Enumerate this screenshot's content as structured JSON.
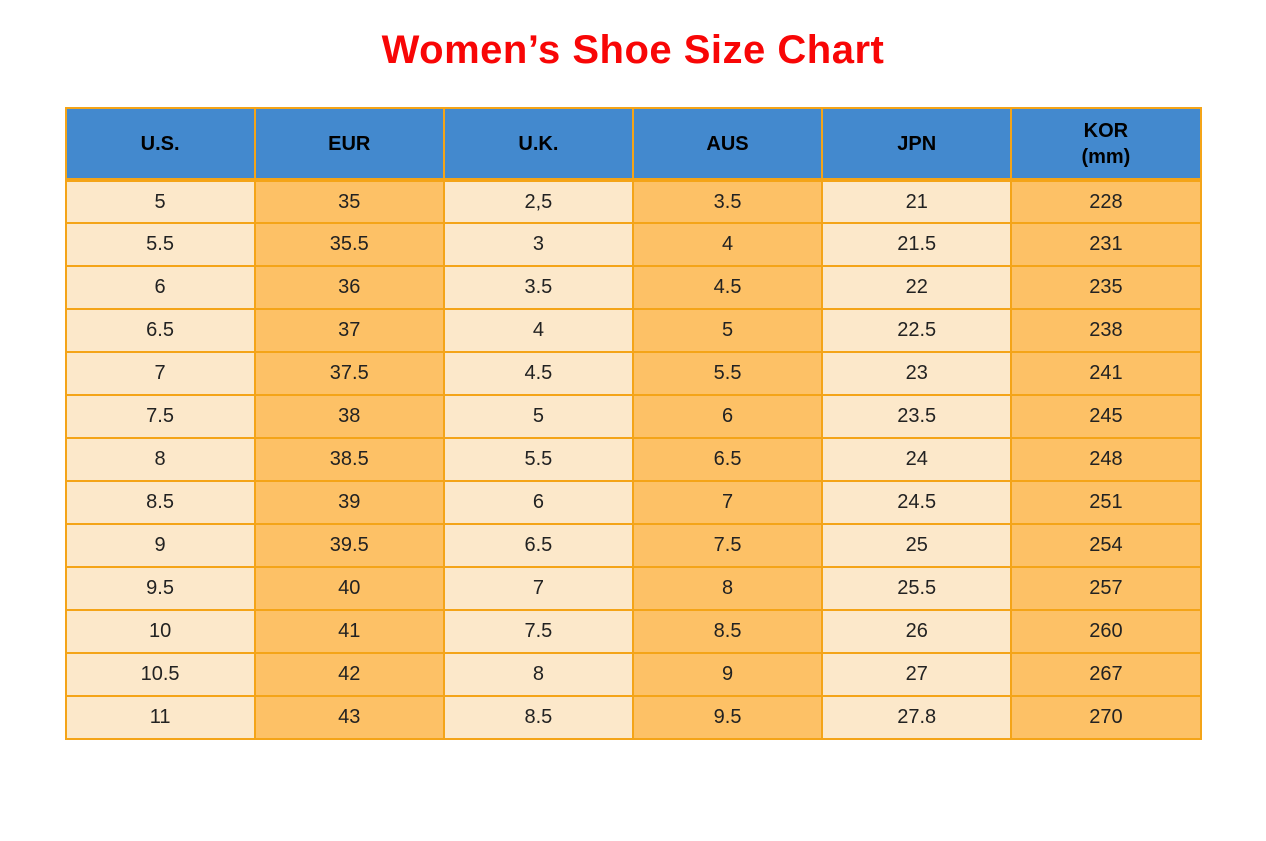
{
  "title": "Women’s Shoe Size Chart",
  "colors": {
    "title_red": "#f80606",
    "header_blue": "#4389ce",
    "cream_cell": "#fce8ca",
    "orange_cell": "#fdc166",
    "border_orange": "#f4a418",
    "cell_text": "#222222",
    "header_text": "#000000"
  },
  "table": {
    "columns": [
      {
        "label": "U.S.",
        "sub": "",
        "tone": "cream"
      },
      {
        "label": "EUR",
        "sub": "",
        "tone": "orange"
      },
      {
        "label": "U.K.",
        "sub": "",
        "tone": "cream"
      },
      {
        "label": "AUS",
        "sub": "",
        "tone": "orange"
      },
      {
        "label": "JPN",
        "sub": "",
        "tone": "cream"
      },
      {
        "label": "KOR",
        "sub": "(mm)",
        "tone": "orange"
      }
    ]
  },
  "chart_data": {
    "type": "table",
    "title": "Women’s Shoe Size Chart",
    "columns": [
      "U.S.",
      "EUR",
      "U.K.",
      "AUS",
      "JPN",
      "KOR (mm)"
    ],
    "rows": [
      [
        "5",
        "35",
        "2,5",
        "3.5",
        "21",
        "228"
      ],
      [
        "5.5",
        "35.5",
        "3",
        "4",
        "21.5",
        "231"
      ],
      [
        "6",
        "36",
        "3.5",
        "4.5",
        "22",
        "235"
      ],
      [
        "6.5",
        "37",
        "4",
        "5",
        "22.5",
        "238"
      ],
      [
        "7",
        "37.5",
        "4.5",
        "5.5",
        "23",
        "241"
      ],
      [
        "7.5",
        "38",
        "5",
        "6",
        "23.5",
        "245"
      ],
      [
        "8",
        "38.5",
        "5.5",
        "6.5",
        "24",
        "248"
      ],
      [
        "8.5",
        "39",
        "6",
        "7",
        "24.5",
        "251"
      ],
      [
        "9",
        "39.5",
        "6.5",
        "7.5",
        "25",
        "254"
      ],
      [
        "9.5",
        "40",
        "7",
        "8",
        "25.5",
        "257"
      ],
      [
        "10",
        "41",
        "7.5",
        "8.5",
        "26",
        "260"
      ],
      [
        "10.5",
        "42",
        "8",
        "9",
        "27",
        "267"
      ],
      [
        "11",
        "43",
        "8.5",
        "9.5",
        "27.8",
        "270"
      ]
    ]
  }
}
